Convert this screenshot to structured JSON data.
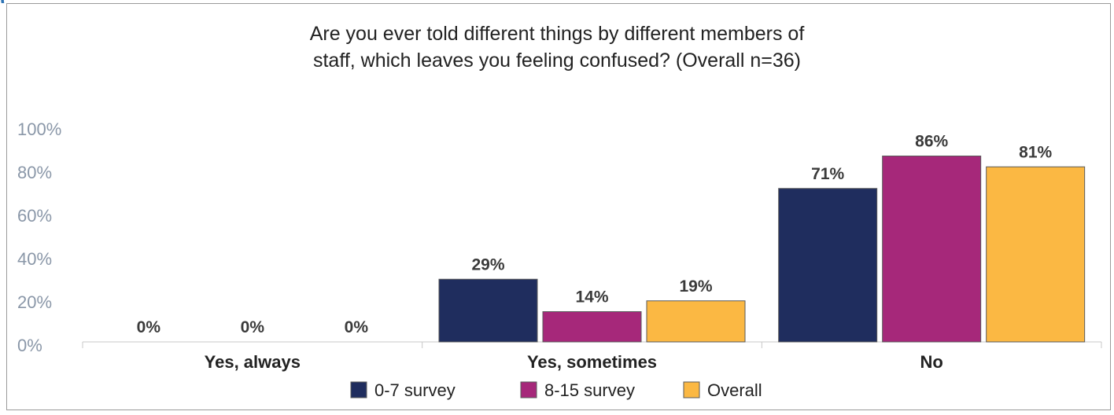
{
  "chart_data": {
    "type": "bar",
    "title_line1": "Are you ever told different things by different members of",
    "title_line2": "staff, which leaves you feeling confused? (Overall n=36)",
    "categories": [
      "Yes, always",
      "Yes, sometimes",
      "No"
    ],
    "series": [
      {
        "name": "0-7 survey",
        "values": [
          0,
          29,
          71
        ],
        "labels": [
          "0%",
          "29%",
          "71%"
        ],
        "color": "#1f2d5e"
      },
      {
        "name": "8-15 survey",
        "values": [
          0,
          14,
          86
        ],
        "labels": [
          "0%",
          "14%",
          "86%"
        ],
        "color": "#a6287a"
      },
      {
        "name": "Overall",
        "values": [
          0,
          19,
          81
        ],
        "labels": [
          "0%",
          "19%",
          "81%"
        ],
        "color": "#fbb843"
      }
    ],
    "y_ticks": [
      "0%",
      "20%",
      "40%",
      "60%",
      "80%",
      "100%"
    ],
    "ylim": [
      0,
      100
    ],
    "grid": false,
    "legend_position": "bottom"
  }
}
